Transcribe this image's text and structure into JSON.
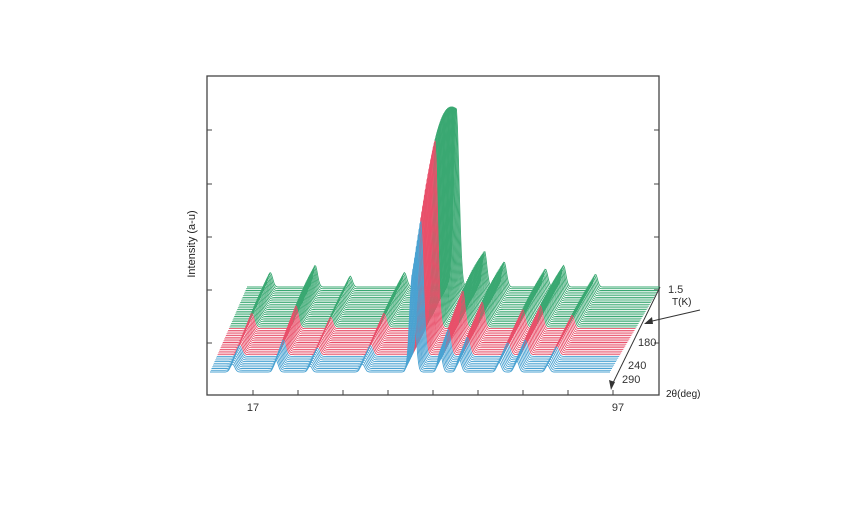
{
  "chart_data": {
    "type": "line",
    "style": "waterfall-3d",
    "title": "",
    "ylabel": "Intensity (a-u)",
    "xlabel": "2θ(deg)",
    "zlabel": "T(K)",
    "x_ticks": [
      "17",
      "97"
    ],
    "x_range": [
      17,
      97
    ],
    "temperature_ticks": [
      "1.5",
      "180",
      "240",
      "290"
    ],
    "temperature_range": [
      1.5,
      290
    ],
    "grid": false,
    "legend": "none",
    "series_count": 50,
    "series_groups": [
      {
        "color": "#3aa872",
        "t_range": [
          1.5,
          180
        ],
        "traces": 24
      },
      {
        "color": "#e8506a",
        "t_range": [
          180,
          240
        ],
        "traces": 16
      },
      {
        "color": "#4aa2d2",
        "t_range": [
          240,
          290
        ],
        "traces": 10
      }
    ],
    "peaks": [
      {
        "x": 21.5,
        "height": 0.08,
        "width": 0.45
      },
      {
        "x": 30.2,
        "height": 0.12,
        "width": 0.45
      },
      {
        "x": 37.0,
        "height": 0.06,
        "width": 0.4
      },
      {
        "x": 47.5,
        "height": 0.08,
        "width": 0.45
      },
      {
        "x": 57.5,
        "height": 1.0,
        "width": 0.55
      },
      {
        "x": 63.0,
        "height": 0.2,
        "width": 0.45
      },
      {
        "x": 66.8,
        "height": 0.14,
        "width": 0.45
      },
      {
        "x": 74.8,
        "height": 0.1,
        "width": 0.45
      },
      {
        "x": 78.3,
        "height": 0.12,
        "width": 0.45
      },
      {
        "x": 84.5,
        "height": 0.07,
        "width": 0.4
      }
    ]
  }
}
